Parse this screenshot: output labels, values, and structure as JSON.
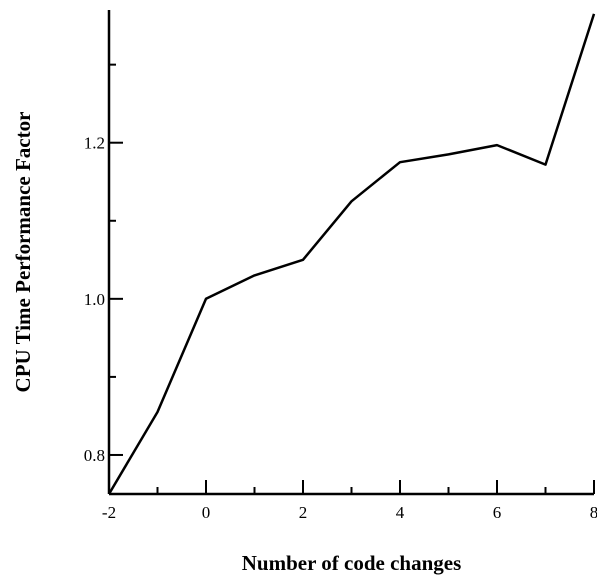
{
  "chart_data": {
    "type": "line",
    "title": "",
    "xlabel": "Number of code changes",
    "ylabel": "CPU Time Performance Factor",
    "xlim": [
      -2,
      8
    ],
    "ylim": [
      0.75,
      1.37
    ],
    "x_ticks": [
      {
        "value": -2,
        "label": "-2"
      },
      {
        "value": 0,
        "label": "0"
      },
      {
        "value": 2,
        "label": "2"
      },
      {
        "value": 4,
        "label": "4"
      },
      {
        "value": 6,
        "label": "6"
      },
      {
        "value": 8,
        "label": "8"
      }
    ],
    "x_minor_ticks": [
      -1,
      1,
      3,
      5,
      7
    ],
    "y_ticks": [
      {
        "value": 0.8,
        "label": "0.8"
      },
      {
        "value": 1.0,
        "label": "1.0"
      },
      {
        "value": 1.2,
        "label": "1.2"
      }
    ],
    "y_minor_ticks": [
      0.9,
      1.1,
      1.3
    ],
    "grid": false,
    "series": [
      {
        "x": [
          -2,
          -1,
          0,
          1,
          2,
          3,
          3.5,
          4,
          5,
          6,
          7,
          8
        ],
        "y": [
          0.75,
          0.855,
          1.0,
          1.03,
          1.05,
          1.125,
          1.15,
          1.175,
          1.185,
          1.197,
          1.172,
          1.365
        ]
      }
    ]
  }
}
